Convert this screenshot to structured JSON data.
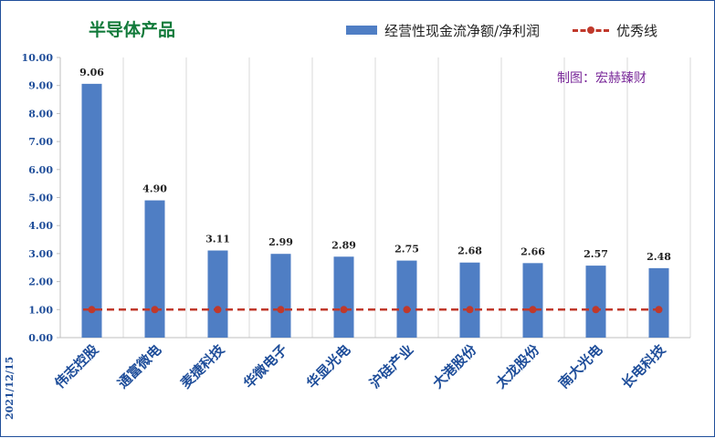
{
  "title": "半导体产品",
  "credit": "制图：宏赫臻财",
  "date": "2021/12/15",
  "legend": {
    "bar_label": "经营性现金流净额/净利润",
    "line_label": "优秀线"
  },
  "colors": {
    "bar": "#4f7ec4",
    "line": "#c0392b",
    "title": "#117a3a",
    "credit": "#7a2a9a",
    "axis_text": "#1f4e9a"
  },
  "chart_data": {
    "type": "bar",
    "title": "半导体产品",
    "categories": [
      "伟志控股",
      "通富微电",
      "麦捷科技",
      "华微电子",
      "华显光电",
      "沪硅产业",
      "大港股份",
      "太龙股份",
      "南大光电",
      "长电科技"
    ],
    "series": [
      {
        "name": "经营性现金流净额/净利润",
        "type": "bar",
        "values": [
          9.06,
          4.9,
          3.11,
          2.99,
          2.89,
          2.75,
          2.68,
          2.66,
          2.57,
          2.48
        ]
      },
      {
        "name": "优秀线",
        "type": "line",
        "values": [
          1,
          1,
          1,
          1,
          1,
          1,
          1,
          1,
          1,
          1
        ]
      }
    ],
    "ylim": [
      0,
      10
    ],
    "yticks": [
      "0.00",
      "1.00",
      "2.00",
      "3.00",
      "4.00",
      "5.00",
      "6.00",
      "7.00",
      "8.00",
      "9.00",
      "10.00"
    ],
    "data_labels": [
      "9.06",
      "4.90",
      "3.11",
      "2.99",
      "2.89",
      "2.75",
      "2.68",
      "2.66",
      "2.57",
      "2.48"
    ],
    "grid": {
      "vertical": true,
      "horizontal": false
    },
    "legend_position": "top-right"
  }
}
